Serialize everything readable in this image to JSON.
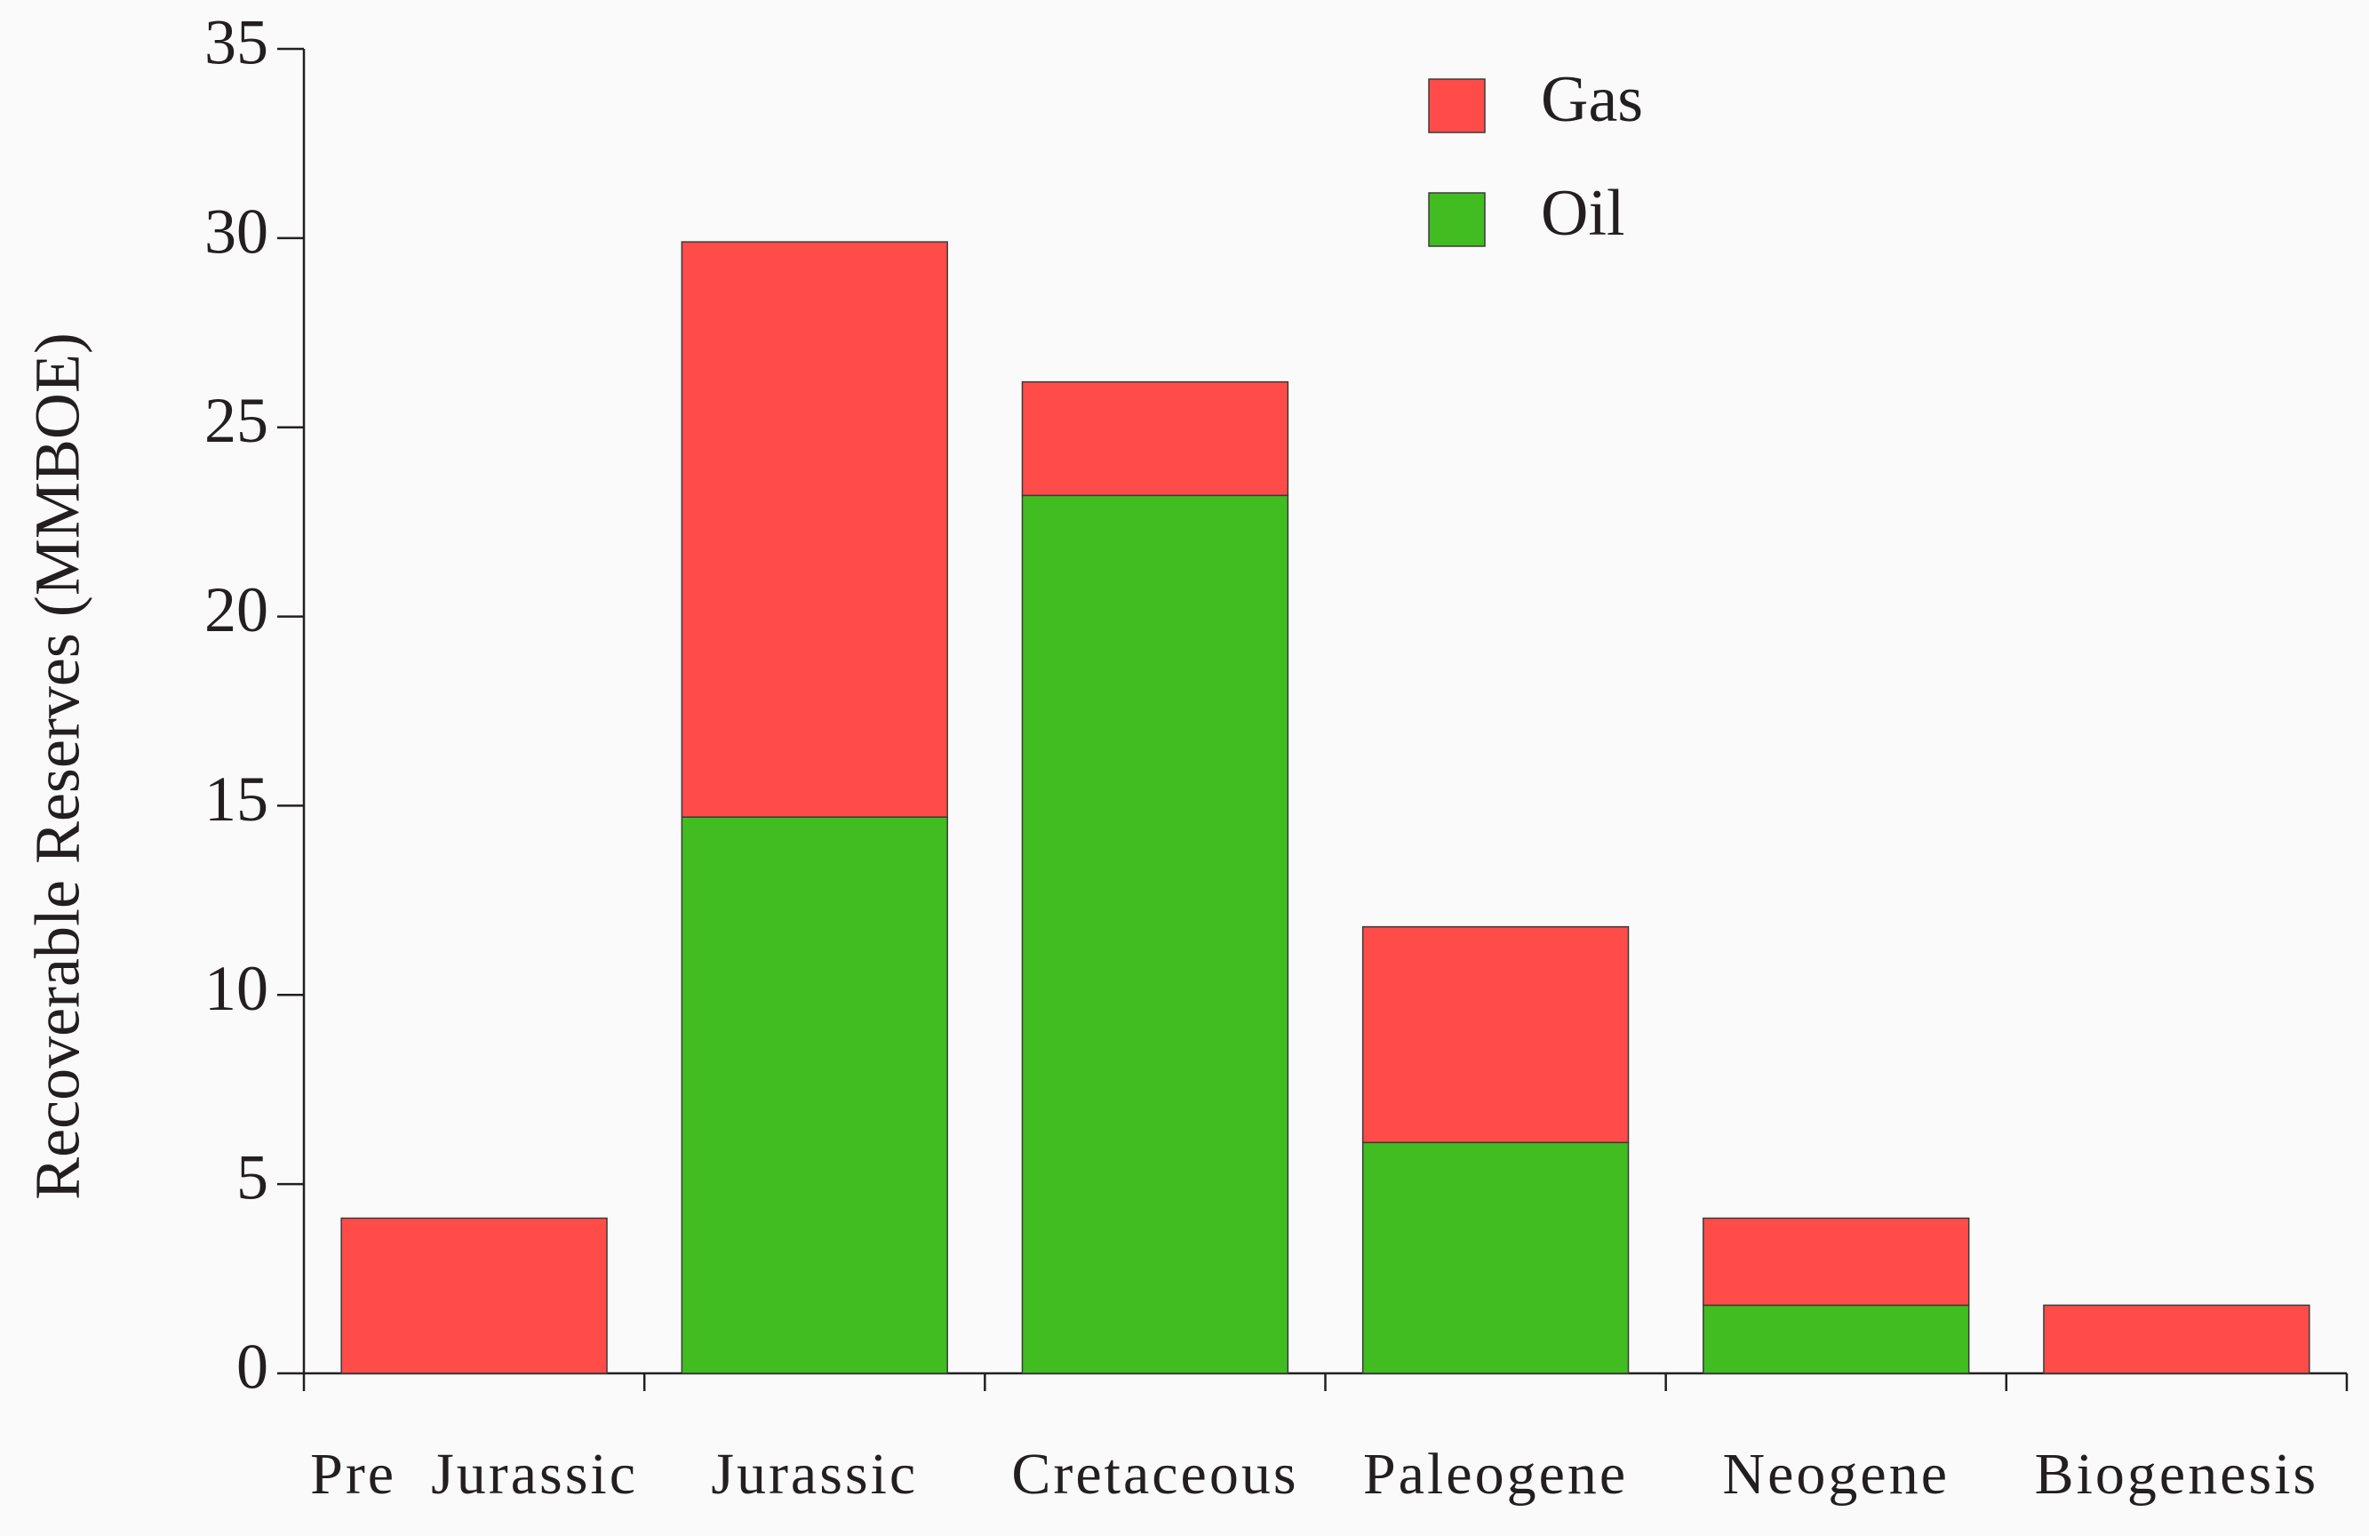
{
  "chart_data": {
    "type": "stacked_bar",
    "y_label": "Recoverable Reserves (MMBOE)",
    "categories": [
      "Pre  Jurassic",
      "Jurassic",
      "Cretaceous",
      "Paleogene",
      "Neogene",
      "Biogenesis"
    ],
    "series": [
      {
        "name": "Oil",
        "color": "#41bd21",
        "values": [
          0,
          14.7,
          23.2,
          6.1,
          1.8,
          0
        ]
      },
      {
        "name": "Gas",
        "color": "#ff4c48",
        "values": [
          4.1,
          15.2,
          3.0,
          5.7,
          2.3,
          1.8
        ]
      }
    ],
    "ylim": [
      0,
      35
    ],
    "yticks": [
      0,
      5,
      10,
      15,
      20,
      25,
      30,
      35
    ],
    "legend": "top-right"
  }
}
